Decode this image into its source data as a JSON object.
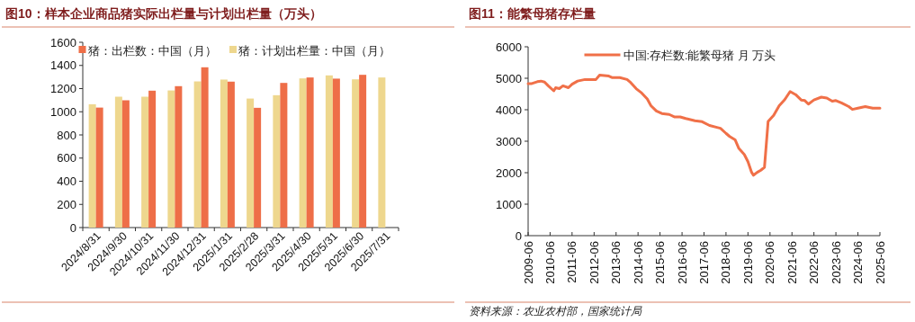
{
  "chart_data": [
    {
      "type": "bar",
      "title": "图10：样本企业商品猪实际出栏量与计划出栏量（万头）",
      "categories": [
        "2024/8/31",
        "2024/9/30",
        "2024/10/31",
        "2024/11/30",
        "2024/12/31",
        "2025/1/31",
        "2025/2/28",
        "2025/3/31",
        "2025/4/30",
        "2025/5/31",
        "2025/6/30",
        "2025/7/31"
      ],
      "series": [
        {
          "name": "猪：计划出栏量：中国（月）",
          "color": "#eed78e",
          "values": [
            1065,
            1130,
            1130,
            1184,
            1262,
            1278,
            1114,
            1143,
            1288,
            1314,
            1280,
            1296
          ]
        },
        {
          "name": "猪：出栏数：中国（月）",
          "color": "#ee6e48",
          "values": [
            1036,
            1099,
            1182,
            1221,
            1384,
            1260,
            1034,
            1249,
            1296,
            1286,
            1319,
            null
          ]
        }
      ],
      "ylim": [
        0,
        1600
      ],
      "yticks": [
        0,
        200,
        400,
        600,
        800,
        1000,
        1200,
        1400,
        1600
      ],
      "legend": "top"
    },
    {
      "type": "line",
      "title": "图11：能繁母猪存栏量",
      "x": [
        "2009-06",
        "2009-08",
        "2009-11",
        "2010-01",
        "2010-03",
        "2010-05",
        "2010-08",
        "2010-09",
        "2010-11",
        "2011-01",
        "2011-04",
        "2011-06",
        "2011-09",
        "2012-01",
        "2012-07",
        "2012-09",
        "2013-02",
        "2013-04",
        "2013-08",
        "2013-12",
        "2014-02",
        "2014-05",
        "2014-08",
        "2014-11",
        "2015-01",
        "2015-04",
        "2015-07",
        "2015-11",
        "2016-02",
        "2016-05",
        "2016-08",
        "2017-01",
        "2017-05",
        "2017-09",
        "2018-01",
        "2018-03",
        "2018-06",
        "2018-08",
        "2018-11",
        "2019-01",
        "2019-04",
        "2019-06",
        "2019-08",
        "2019-09",
        "2019-11",
        "2020-01",
        "2020-03",
        "2020-05",
        "2020-08",
        "2020-11",
        "2021-02",
        "2021-05",
        "2021-08",
        "2021-11",
        "2022-01",
        "2022-03",
        "2022-06",
        "2022-10",
        "2023-01",
        "2023-04",
        "2023-06",
        "2023-09",
        "2024-01",
        "2024-03",
        "2024-06",
        "2024-10",
        "2025-02",
        "2025-06"
      ],
      "series": [
        {
          "name": "中国:存栏数:能繁母猪 月 万头",
          "color": "#f07048",
          "values": [
            4830,
            4830,
            4890,
            4910,
            4880,
            4760,
            4600,
            4700,
            4670,
            4760,
            4700,
            4810,
            4910,
            4960,
            4960,
            5100,
            5070,
            5020,
            5020,
            4960,
            4860,
            4670,
            4530,
            4340,
            4130,
            3960,
            3880,
            3850,
            3770,
            3770,
            3720,
            3650,
            3620,
            3500,
            3440,
            3410,
            3250,
            3150,
            3040,
            2770,
            2580,
            2350,
            2010,
            1920,
            2010,
            2080,
            2170,
            3630,
            3820,
            4130,
            4320,
            4580,
            4480,
            4310,
            4290,
            4180,
            4310,
            4400,
            4370,
            4270,
            4290,
            4220,
            4100,
            4010,
            4050,
            4100,
            4050,
            4050
          ]
        }
      ],
      "xlim": [
        "2009-06",
        "2025-06"
      ],
      "xticks": [
        "2009-06",
        "2010-06",
        "2011-06",
        "2012-06",
        "2013-06",
        "2014-06",
        "2015-06",
        "2016-06",
        "2017-06",
        "2018-06",
        "2019-06",
        "2020-06",
        "2021-06",
        "2022-06",
        "2023-06",
        "2024-06",
        "2025-06"
      ],
      "ylim": [
        0,
        6000
      ],
      "yticks": [
        0,
        1000,
        2000,
        3000,
        4000,
        5000,
        6000
      ],
      "legend": "top",
      "annotations": [
        "资料来源：农业农村部，国家统计局"
      ]
    }
  ]
}
